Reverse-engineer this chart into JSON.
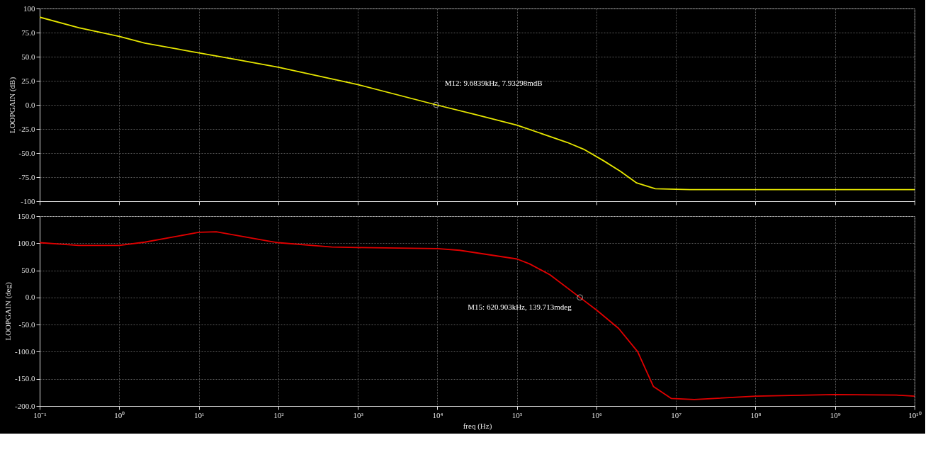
{
  "chart_data": [
    {
      "type": "line",
      "ylabel": "LOOPGAIN (dB)",
      "log": "x",
      "grid": true,
      "tick_labels": "y",
      "xlim": [
        0.1,
        10000000000
      ],
      "xticks": [
        {
          "value": 0.1,
          "label": null
        },
        {
          "value": 1,
          "label": null
        },
        {
          "value": 10,
          "label": null
        },
        {
          "value": 100,
          "label": null
        },
        {
          "value": 1000,
          "label": null
        },
        {
          "value": 10000,
          "label": null
        },
        {
          "value": 100000,
          "label": null
        },
        {
          "value": 1000000,
          "label": null
        },
        {
          "value": 10000000,
          "label": null
        },
        {
          "value": 100000000,
          "label": null
        },
        {
          "value": 1000000000,
          "label": null
        },
        {
          "value": 10000000000,
          "label": null
        }
      ],
      "ylim": [
        -100,
        100
      ],
      "yticks": [
        -100,
        {
          "value": -75,
          "label": "-75.0"
        },
        {
          "value": -50,
          "label": "-50.0"
        },
        {
          "value": -25,
          "label": "-25.0"
        },
        {
          "value": 0,
          "label": "0.0"
        },
        {
          "value": 25,
          "label": "25.0"
        },
        {
          "value": 50,
          "label": "50.0"
        },
        {
          "value": 75,
          "label": "75.0"
        },
        100
      ],
      "series": [
        {
          "color": "#e6e600",
          "x": [
            0.1,
            0.31,
            1,
            2.1,
            10,
            30,
            100,
            1000,
            9683.9,
            30000,
            100000,
            430000,
            690000,
            1230000,
            2000000,
            3200000,
            5500000,
            15000000,
            10000000000
          ],
          "values": [
            91,
            80,
            71,
            64,
            54,
            47,
            39,
            21,
            0,
            -10,
            -21,
            -39,
            -46,
            -58,
            -69,
            -81,
            -87,
            -88,
            -88
          ]
        }
      ],
      "annotations": [
        {
          "text": "M12: 9.6839kHz, 7.93298mdB",
          "x": 9683.9,
          "y": 0.00793
        }
      ]
    },
    {
      "type": "line",
      "ylabel": "LOOPGAIN (deg)",
      "xlabel": "freq (Hz)",
      "log": "x",
      "grid": true,
      "xlim": [
        0.1,
        10000000000
      ],
      "xticks": [
        {
          "value": 0.1,
          "label": "10⁻¹"
        },
        {
          "value": 1,
          "label": "10⁰"
        },
        {
          "value": 10,
          "label": "10¹"
        },
        {
          "value": 100,
          "label": "10²"
        },
        {
          "value": 1000,
          "label": "10³"
        },
        {
          "value": 10000,
          "label": "10⁴"
        },
        {
          "value": 100000,
          "label": "10⁵"
        },
        {
          "value": 1000000,
          "label": "10⁶"
        },
        {
          "value": 10000000,
          "label": "10⁷"
        },
        {
          "value": 100000000,
          "label": "10⁸"
        },
        {
          "value": 1000000000,
          "label": "10⁹"
        },
        {
          "value": 10000000000,
          "label": "10¹⁰"
        }
      ],
      "ylim": [
        -200,
        150
      ],
      "yticks": [
        {
          "value": -200,
          "label": "-200.0"
        },
        {
          "value": -150,
          "label": "-150.0"
        },
        {
          "value": -100,
          "label": "-100.0"
        },
        {
          "value": -50,
          "label": "-50.0"
        },
        {
          "value": 0,
          "label": "0.0"
        },
        {
          "value": 50,
          "label": "50.0"
        },
        {
          "value": 100,
          "label": "100.0"
        },
        {
          "value": 150,
          "label": "150.0"
        }
      ],
      "series": [
        {
          "color": "#e00000",
          "x": [
            0.1,
            0.31,
            1,
            2.1,
            10,
            16.6,
            74,
            100,
            470,
            1000,
            10000,
            19000,
            100000,
            144000,
            260000,
            620903,
            1020000,
            1900000,
            3300000,
            5200000,
            8700000,
            17000000,
            100000000,
            1000000000,
            5900000000,
            10000000000
          ],
          "values": [
            101,
            96,
            96,
            102,
            120,
            121,
            104,
            101,
            93,
            92,
            90,
            87,
            71,
            62,
            42,
            0,
            -24,
            -57,
            -100,
            -164,
            -186,
            -188,
            -182,
            -179,
            -180,
            -182
          ]
        }
      ],
      "annotations": [
        {
          "text": "M15: 620.903kHz, 139.713mdeg",
          "x": 620903,
          "y": 0.139713
        }
      ]
    }
  ]
}
